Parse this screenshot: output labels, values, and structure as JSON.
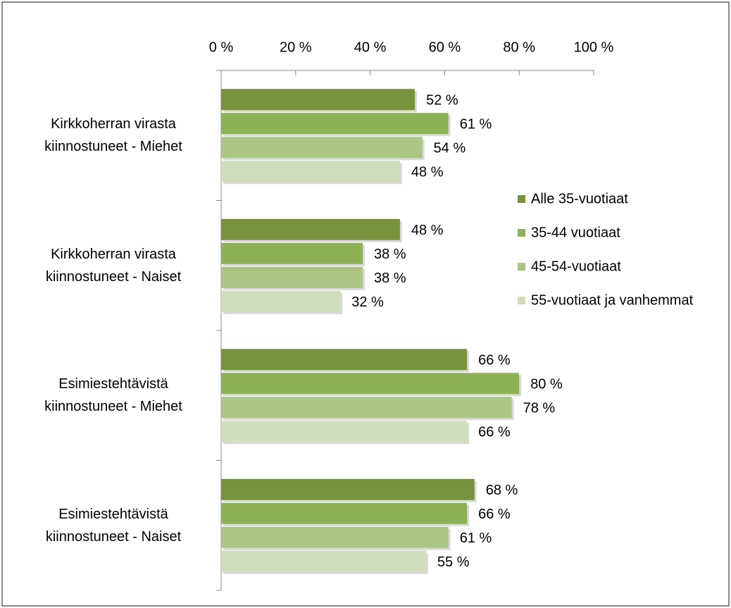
{
  "chart_data": {
    "type": "barh",
    "categories": [
      "Kirkkoherran virasta kiinnostuneet - Miehet",
      "Kirkkoherran virasta kiinnostuneet - Naiset",
      "Esimiestehtävistä kiinnostuneet - Miehet",
      "Esimiestehtävistä kiinnostuneet - Naiset"
    ],
    "series": [
      {
        "name": "Alle 35-vuotiaat",
        "color": "#77933c",
        "values": [
          52,
          48,
          66,
          68
        ],
        "value_labels": [
          "52 %",
          "48 %",
          "66 %",
          "68 %"
        ]
      },
      {
        "name": "35-44 vuotiaat",
        "color": "#8db255",
        "values": [
          61,
          38,
          80,
          66
        ],
        "value_labels": [
          "61 %",
          "38 %",
          "80 %",
          "66 %"
        ]
      },
      {
        "name": "45-54-vuotiaat",
        "color": "#aac584",
        "values": [
          54,
          38,
          78,
          61
        ],
        "value_labels": [
          "54 %",
          "38 %",
          "78 %",
          "61 %"
        ]
      },
      {
        "name": "55-vuotiaat ja vanhemmat",
        "color": "#d0ddba",
        "values": [
          48,
          32,
          66,
          55
        ],
        "value_labels": [
          "48 %",
          "32 %",
          "66 %",
          "55 %"
        ]
      }
    ],
    "xlim": [
      0,
      100
    ],
    "xticks": [
      {
        "value": 0,
        "label": "0 %"
      },
      {
        "value": 20,
        "label": "20 %"
      },
      {
        "value": 40,
        "label": "40 %"
      },
      {
        "value": 60,
        "label": "60 %"
      },
      {
        "value": 80,
        "label": "80 %"
      },
      {
        "value": 100,
        "label": "100 %"
      }
    ],
    "legend": "right"
  }
}
